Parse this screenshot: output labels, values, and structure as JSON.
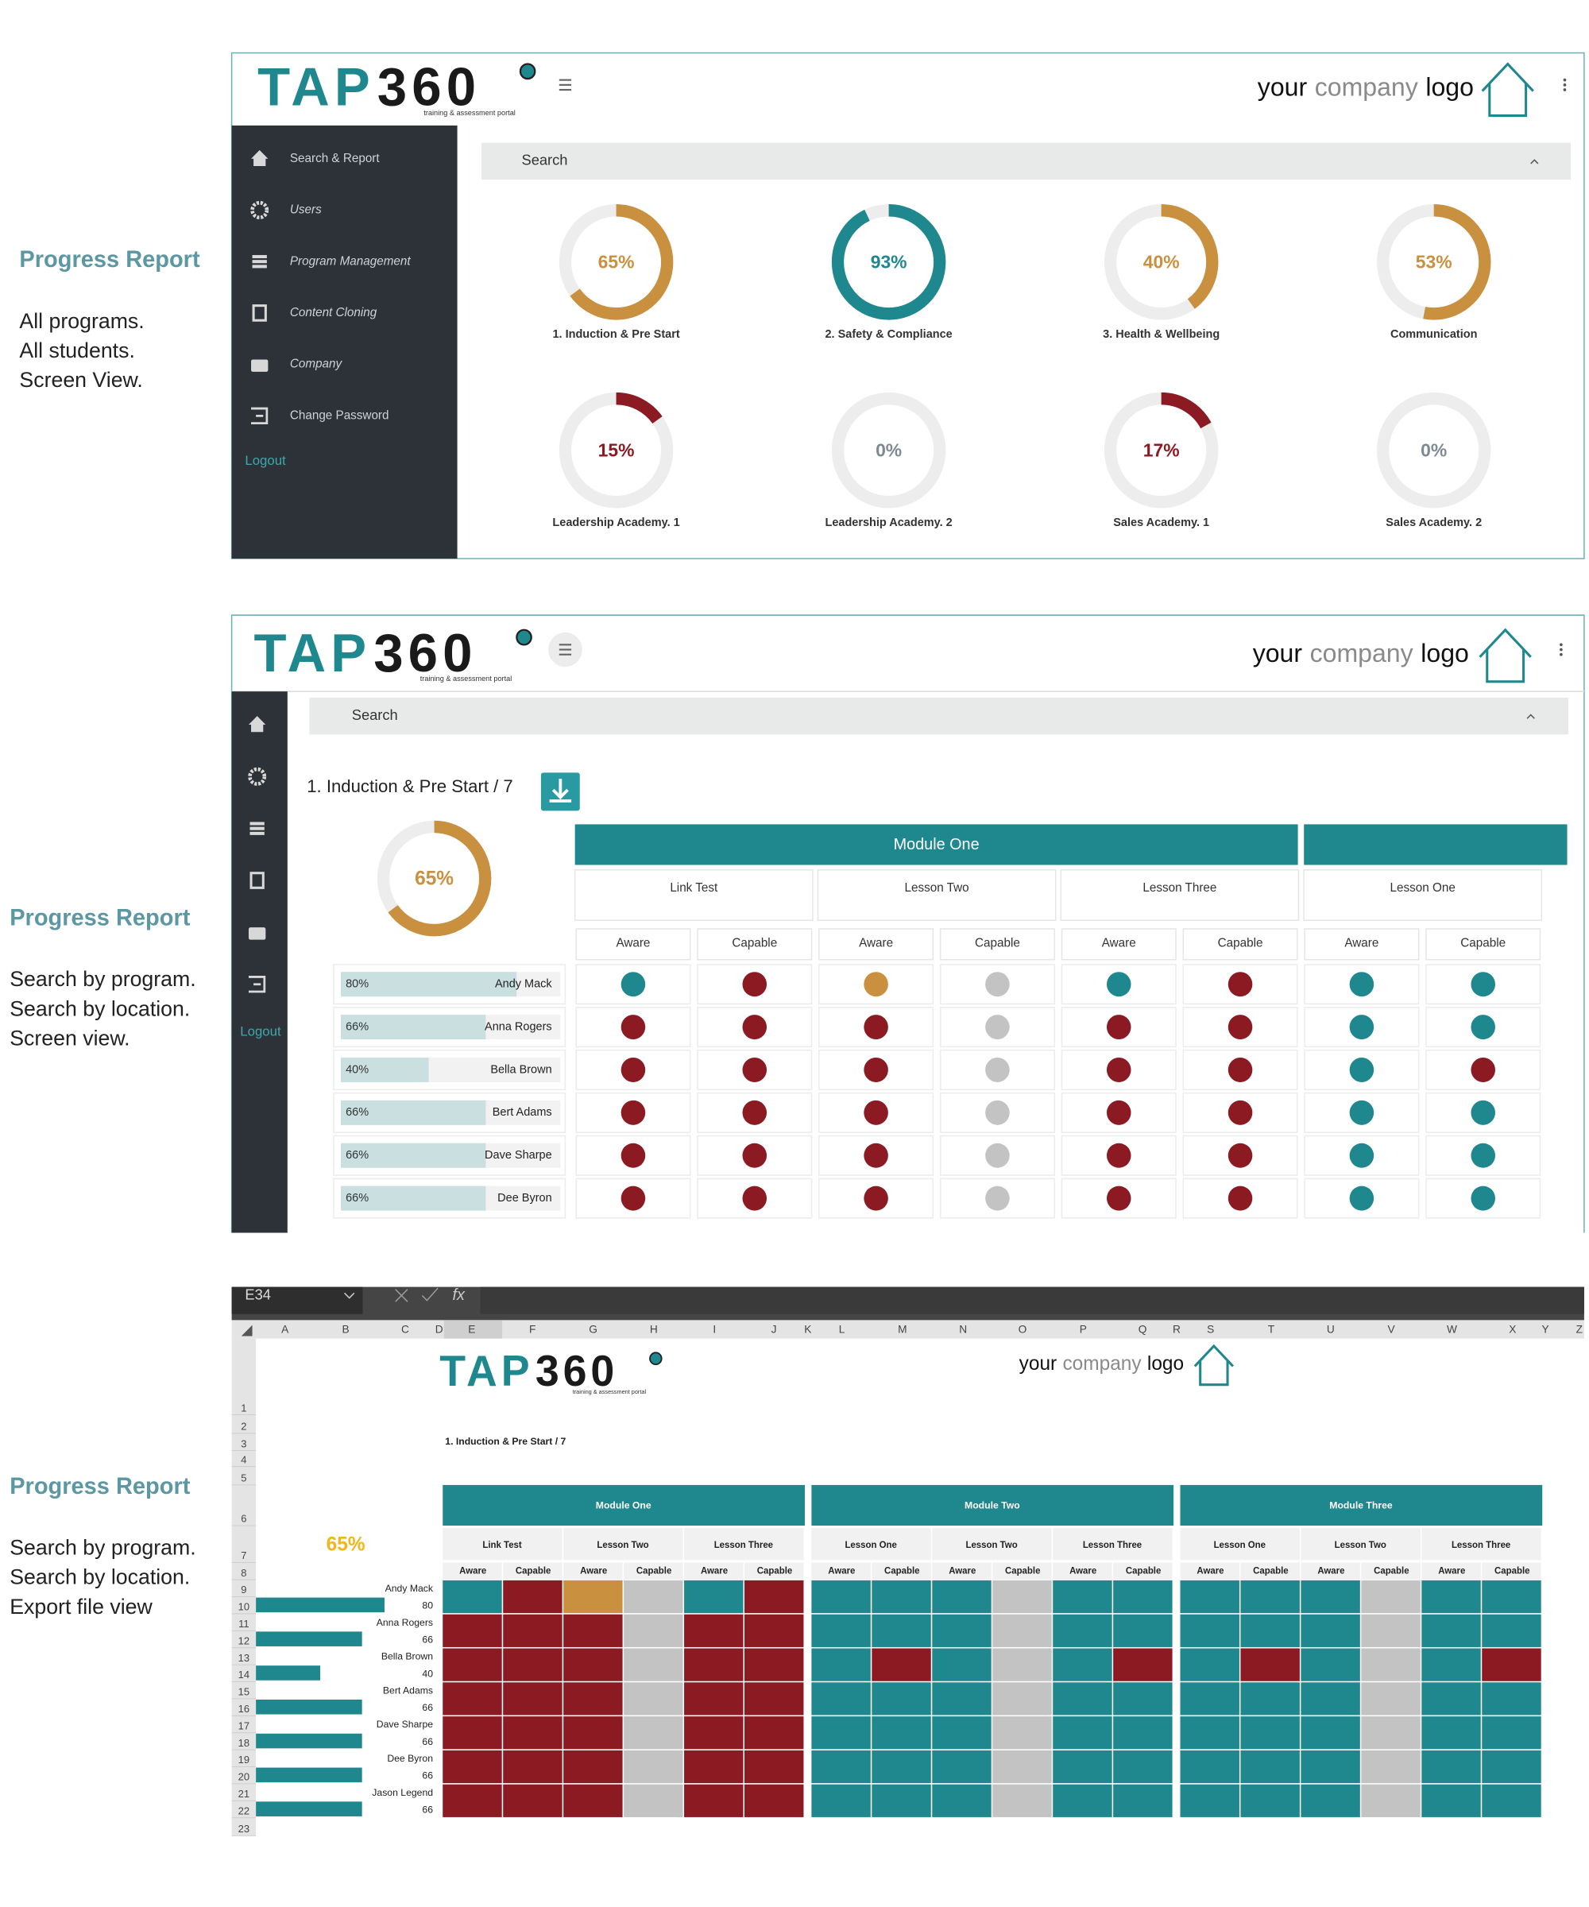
{
  "panels": [
    {
      "heading": "Progress Report",
      "lines": [
        "All programs.",
        "All students.",
        "Screen View."
      ]
    },
    {
      "heading": "Progress Report",
      "lines": [
        "Search by program.",
        "Search by location.",
        "Screen view."
      ]
    },
    {
      "heading": "Progress Report",
      "lines": [
        "Search by program.",
        "Search by location.",
        "Export file view"
      ]
    }
  ],
  "brand": {
    "part_a": "TAP",
    "part_b": "360",
    "tagline": "training & assessment portal"
  },
  "company_logo": [
    "your",
    "company",
    "logo"
  ],
  "colors": {
    "teal": "#1f878e",
    "red": "#8c1a22",
    "orange": "#c8903f",
    "grey": "#c3c3c3"
  },
  "screen_view": {
    "menu": [
      "Search & Report",
      "Users",
      "Program Management",
      "Content Cloning",
      "Company",
      "Change Password"
    ],
    "logout": "Logout",
    "search": "Search",
    "programs": [
      {
        "name": "1. Induction & Pre Start",
        "percent": 65,
        "percent_label": "65%",
        "color": "#c8903f"
      },
      {
        "name": "2. Safety & Compliance",
        "percent": 93,
        "percent_label": "93%",
        "color": "#1f878e"
      },
      {
        "name": "3. Health & Wellbeing",
        "percent": 40,
        "percent_label": "40%",
        "color": "#c8903f"
      },
      {
        "name": "Communication",
        "percent": 53,
        "percent_label": "53%",
        "color": "#c8903f"
      },
      {
        "name": "Leadership Academy. 1",
        "percent": 15,
        "percent_label": "15%",
        "color": "#8c1a22"
      },
      {
        "name": "Leadership Academy. 2",
        "percent": 0,
        "percent_label": "0%",
        "color": "#7d8a92"
      },
      {
        "name": "Sales Academy. 1",
        "percent": 17,
        "percent_label": "17%",
        "color": "#8c1a22"
      },
      {
        "name": "Sales Academy. 2",
        "percent": 0,
        "percent_label": "0%",
        "color": "#7d8a92"
      }
    ]
  },
  "program_view": {
    "search": "Search",
    "logout": "Logout",
    "title": "1. Induction & Pre Start / 7",
    "percent": 65,
    "percent_label": "65%",
    "module": "Module One",
    "lessons": [
      "Link Test",
      "Lesson Two",
      "Lesson Three",
      "Lesson One"
    ],
    "levels": [
      "Aware",
      "Capable"
    ],
    "students": [
      {
        "name": "Andy Mack",
        "percent": 80,
        "percent_label": "80%"
      },
      {
        "name": "Anna Rogers",
        "percent": 66,
        "percent_label": "66%"
      },
      {
        "name": "Bella Brown",
        "percent": 40,
        "percent_label": "40%"
      },
      {
        "name": "Bert Adams",
        "percent": 66,
        "percent_label": "66%"
      },
      {
        "name": "Dave Sharpe",
        "percent": 66,
        "percent_label": "66%"
      },
      {
        "name": "Dee Byron",
        "percent": 66,
        "percent_label": "66%"
      }
    ],
    "status": [
      [
        "teal",
        "red",
        "orange",
        "grey",
        "teal",
        "red",
        "teal",
        "teal"
      ],
      [
        "red",
        "red",
        "red",
        "grey",
        "red",
        "red",
        "teal",
        "teal"
      ],
      [
        "red",
        "red",
        "red",
        "grey",
        "red",
        "red",
        "teal",
        "red"
      ],
      [
        "red",
        "red",
        "red",
        "grey",
        "red",
        "red",
        "teal",
        "teal"
      ],
      [
        "red",
        "red",
        "red",
        "grey",
        "red",
        "red",
        "teal",
        "teal"
      ],
      [
        "red",
        "red",
        "red",
        "grey",
        "red",
        "red",
        "teal",
        "teal"
      ]
    ]
  },
  "export_view": {
    "cell_ref": "E34",
    "formula_icon": "fx",
    "columns": [
      "A",
      "B",
      "C",
      "D",
      "E",
      "F",
      "G",
      "H",
      "I",
      "J",
      "K",
      "L",
      "M",
      "N",
      "O",
      "P",
      "Q",
      "R",
      "S",
      "T",
      "U",
      "V",
      "W",
      "X",
      "Y",
      "Z"
    ],
    "rows": [
      1,
      2,
      3,
      4,
      5,
      6,
      7,
      8,
      9,
      10,
      11,
      12,
      13,
      14,
      15,
      16,
      17,
      18,
      19,
      20,
      21,
      22,
      23
    ],
    "title": "1. Induction & Pre Start / 7",
    "percent_label": "65%",
    "modules": [
      {
        "name": "Module One",
        "lessons": [
          "Link Test",
          "Lesson Two",
          "Lesson Three"
        ]
      },
      {
        "name": "Module Two",
        "lessons": [
          "Lesson One",
          "Lesson Two",
          "Lesson Three"
        ]
      },
      {
        "name": "Module Three",
        "lessons": [
          "Lesson One",
          "Lesson Two",
          "Lesson Three"
        ]
      }
    ],
    "levels": [
      "Aware",
      "Capable"
    ],
    "students": [
      {
        "name": "Andy Mack",
        "percent": 80
      },
      {
        "name": "Anna Rogers",
        "percent": 66
      },
      {
        "name": "Bella Brown",
        "percent": 40
      },
      {
        "name": "Bert Adams",
        "percent": 66
      },
      {
        "name": "Dave Sharpe",
        "percent": 66
      },
      {
        "name": "Dee Byron",
        "percent": 66
      },
      {
        "name": "Jason Legend",
        "percent": 66
      }
    ],
    "status": [
      [
        "teal",
        "red",
        "orange",
        "grey",
        "teal",
        "red",
        "teal",
        "teal",
        "teal",
        "grey",
        "teal",
        "teal",
        "teal",
        "teal",
        "teal",
        "grey",
        "teal",
        "teal"
      ],
      [
        "red",
        "red",
        "red",
        "grey",
        "red",
        "red",
        "teal",
        "teal",
        "teal",
        "grey",
        "teal",
        "teal",
        "teal",
        "teal",
        "teal",
        "grey",
        "teal",
        "teal"
      ],
      [
        "red",
        "red",
        "red",
        "grey",
        "red",
        "red",
        "teal",
        "red",
        "teal",
        "grey",
        "teal",
        "red",
        "teal",
        "red",
        "teal",
        "grey",
        "teal",
        "red"
      ],
      [
        "red",
        "red",
        "red",
        "grey",
        "red",
        "red",
        "teal",
        "teal",
        "teal",
        "grey",
        "teal",
        "teal",
        "teal",
        "teal",
        "teal",
        "grey",
        "teal",
        "teal"
      ],
      [
        "red",
        "red",
        "red",
        "grey",
        "red",
        "red",
        "teal",
        "teal",
        "teal",
        "grey",
        "teal",
        "teal",
        "teal",
        "teal",
        "teal",
        "grey",
        "teal",
        "teal"
      ],
      [
        "red",
        "red",
        "red",
        "grey",
        "red",
        "red",
        "teal",
        "teal",
        "teal",
        "grey",
        "teal",
        "teal",
        "teal",
        "teal",
        "teal",
        "grey",
        "teal",
        "teal"
      ],
      [
        "red",
        "red",
        "red",
        "grey",
        "red",
        "red",
        "teal",
        "teal",
        "teal",
        "grey",
        "teal",
        "teal",
        "teal",
        "teal",
        "teal",
        "grey",
        "teal",
        "teal"
      ]
    ]
  }
}
